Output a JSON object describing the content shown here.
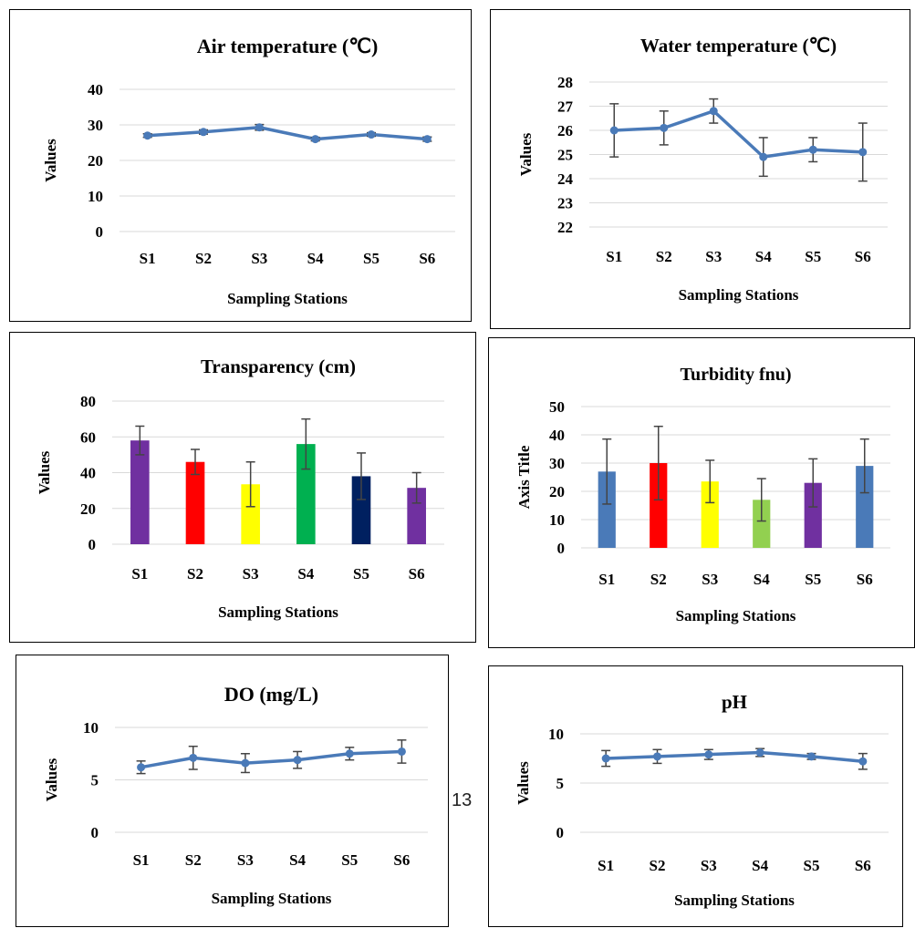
{
  "page_number": "13",
  "colors": {
    "line": "#4a7ab8",
    "grid": "#d9d9d9",
    "error_bar": "#444444"
  },
  "chart_data": [
    {
      "type": "line",
      "title": "Air temperature (℃)",
      "xlabel": "Sampling Stations",
      "ylabel": "Values",
      "categories": [
        "S1",
        "S2",
        "S3",
        "S4",
        "S5",
        "S6"
      ],
      "values": [
        27,
        28,
        29.3,
        26,
        27.3,
        26
      ],
      "error": [
        0.5,
        0.6,
        0.8,
        0.5,
        0.5,
        0.6
      ],
      "ylim": [
        0,
        40
      ],
      "yticks": [
        "0",
        "10",
        "20",
        "30",
        "40"
      ],
      "grid": true,
      "legend": "none"
    },
    {
      "type": "line",
      "title": "Water temperature (℃)",
      "xlabel": "Sampling Stations",
      "ylabel": "Values",
      "categories": [
        "S1",
        "S2",
        "S3",
        "S4",
        "S5",
        "S6"
      ],
      "values": [
        26,
        26.1,
        26.8,
        24.9,
        25.2,
        25.1
      ],
      "error": [
        1.1,
        0.7,
        0.5,
        0.8,
        0.5,
        1.2
      ],
      "ylim": [
        22,
        28
      ],
      "yticks": [
        "22",
        "23",
        "24",
        "25",
        "26",
        "27",
        "28"
      ],
      "grid": true,
      "legend": "none"
    },
    {
      "type": "bar",
      "title": "Transparency (cm)",
      "xlabel": "Sampling Stations",
      "ylabel": "Values",
      "categories": [
        "S1",
        "S2",
        "S3",
        "S4",
        "S5",
        "S6"
      ],
      "values": [
        58,
        46,
        33.5,
        56,
        38,
        31.5
      ],
      "error": [
        8,
        7,
        12.5,
        14,
        13,
        8.5
      ],
      "bar_colors": [
        "#7030a0",
        "#ff0000",
        "#ffff00",
        "#00b050",
        "#002060",
        "#7030a0"
      ],
      "ylim": [
        0,
        80
      ],
      "yticks": [
        "0",
        "20",
        "40",
        "60",
        "80"
      ],
      "grid": true,
      "legend": "none"
    },
    {
      "type": "bar",
      "title": "Turbidity fnu)",
      "xlabel": "Sampling Stations",
      "ylabel": "Axis Title",
      "categories": [
        "S1",
        "S2",
        "S3",
        "S4",
        "S5",
        "S6"
      ],
      "values": [
        27,
        30,
        23.5,
        17,
        23,
        29
      ],
      "error": [
        11.5,
        13,
        7.5,
        7.5,
        8.5,
        9.5
      ],
      "bar_colors": [
        "#4a7ab8",
        "#ff0000",
        "#ffff00",
        "#92d050",
        "#7030a0",
        "#4a7ab8"
      ],
      "ylim": [
        0,
        50
      ],
      "yticks": [
        "0",
        "10",
        "20",
        "30",
        "40",
        "50"
      ],
      "grid": true,
      "legend": "none"
    },
    {
      "type": "line",
      "title": "DO (mg/L)",
      "xlabel": "Sampling Stations",
      "ylabel": "Values",
      "categories": [
        "S1",
        "S2",
        "S3",
        "S4",
        "S5",
        "S6"
      ],
      "values": [
        6.2,
        7.1,
        6.6,
        6.9,
        7.5,
        7.7
      ],
      "error": [
        0.6,
        1.1,
        0.9,
        0.8,
        0.6,
        1.1
      ],
      "ylim": [
        0,
        10
      ],
      "yticks": [
        "0",
        "5",
        "10"
      ],
      "grid": true,
      "legend": "none"
    },
    {
      "type": "line",
      "title": "pH",
      "xlabel": "Sampling Stations",
      "ylabel": "Values",
      "categories": [
        "S1",
        "S2",
        "S3",
        "S4",
        "S5",
        "S6"
      ],
      "values": [
        7.5,
        7.7,
        7.9,
        8.1,
        7.7,
        7.2
      ],
      "error": [
        0.8,
        0.7,
        0.5,
        0.4,
        0.3,
        0.8
      ],
      "ylim": [
        0,
        10
      ],
      "yticks": [
        "0",
        "5",
        "10"
      ],
      "grid": true,
      "legend": "none"
    }
  ]
}
